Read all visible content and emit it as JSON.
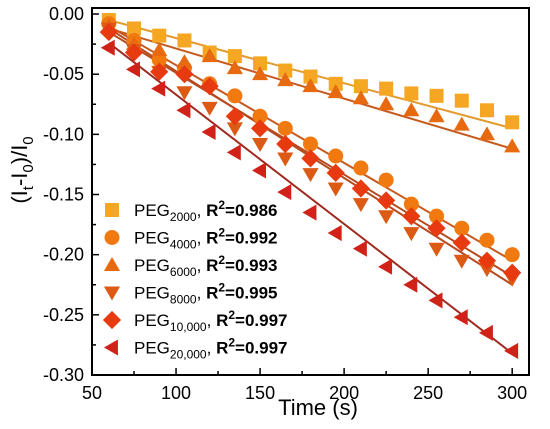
{
  "chart_data": {
    "type": "scatter",
    "xlabel": "Time (s)",
    "ylabel": {
      "base": "(I",
      "sub1": "t",
      "mid": "-I",
      "sub2": "0",
      "close": ")/I",
      "sub3": "0"
    },
    "xlim": [
      50,
      310
    ],
    "ylim": [
      -0.3,
      0.005
    ],
    "x_ticks": [
      "50",
      "100",
      "150",
      "200",
      "250",
      "300"
    ],
    "x_tick_values": [
      50,
      100,
      150,
      200,
      250,
      300
    ],
    "y_ticks": [
      "0.00",
      "-0.05",
      "-0.10",
      "-0.15",
      "-0.20",
      "-0.25",
      "-0.30"
    ],
    "y_tick_values": [
      0,
      -0.05,
      -0.1,
      -0.15,
      -0.2,
      -0.25,
      -0.3
    ],
    "grid": false,
    "legend_position": "bottom-left",
    "x": [
      60,
      75,
      90,
      105,
      120,
      135,
      150,
      165,
      180,
      195,
      210,
      225,
      240,
      255,
      270,
      285,
      300
    ],
    "series": [
      {
        "name": "PEG2000",
        "label_main": "PEG",
        "label_sub": "2000",
        "r2_prefix": ", ",
        "r2_label": "R",
        "r2_sup": "2",
        "r2_value": "=0.986",
        "marker": "square",
        "color": "#F5A623",
        "line_color": "#E29A2C",
        "values": [
          -0.005,
          -0.012,
          -0.018,
          -0.022,
          -0.032,
          -0.035,
          -0.041,
          -0.047,
          -0.052,
          -0.058,
          -0.06,
          -0.062,
          -0.066,
          -0.068,
          -0.072,
          -0.08,
          -0.09
        ],
        "fit": [
          -0.005,
          -0.095
        ]
      },
      {
        "name": "PEG4000",
        "label_main": "PEG",
        "label_sub": "4000",
        "r2_prefix": ", ",
        "r2_label": "R",
        "r2_sup": "2",
        "r2_value": "=0.992",
        "marker": "circle",
        "color": "#F07A10",
        "line_color": "#C65A1E",
        "values": [
          -0.008,
          -0.022,
          -0.038,
          -0.045,
          -0.058,
          -0.068,
          -0.085,
          -0.095,
          -0.108,
          -0.118,
          -0.128,
          -0.138,
          -0.158,
          -0.168,
          -0.178,
          -0.188,
          -0.2
        ],
        "fit": [
          -0.01,
          -0.205
        ]
      },
      {
        "name": "PEG6000",
        "label_main": "PEG",
        "label_sub": "6000",
        "r2_prefix": ", ",
        "r2_label": "R",
        "r2_sup": "2",
        "r2_value": "=0.993",
        "marker": "triangle-up",
        "color": "#E86A10",
        "line_color": "#C65A1E",
        "values": [
          -0.01,
          -0.025,
          -0.03,
          -0.04,
          -0.035,
          -0.045,
          -0.05,
          -0.055,
          -0.06,
          -0.065,
          -0.07,
          -0.075,
          -0.08,
          -0.085,
          -0.092,
          -0.1,
          -0.11
        ],
        "fit": [
          -0.012,
          -0.112
        ]
      },
      {
        "name": "PEG8000",
        "label_main": "PEG",
        "label_sub": "8000",
        "r2_prefix": ", ",
        "r2_label": "R",
        "r2_sup": "2",
        "r2_value": "=0.995",
        "marker": "triangle-down",
        "color": "#DC5A14",
        "line_color": "#B54A1E",
        "values": [
          -0.012,
          -0.03,
          -0.048,
          -0.065,
          -0.078,
          -0.095,
          -0.108,
          -0.12,
          -0.133,
          -0.145,
          -0.158,
          -0.168,
          -0.182,
          -0.195,
          -0.205,
          -0.212,
          -0.22
        ],
        "fit": [
          -0.012,
          -0.225
        ]
      },
      {
        "name": "PEG10,000",
        "label_main": "PEG",
        "label_sub": "10,000",
        "r2_prefix": ", ",
        "r2_label": "R",
        "r2_sup": "2",
        "r2_value": "=0.997",
        "marker": "diamond",
        "color": "#E83A10",
        "line_color": "#B54A1E",
        "values": [
          -0.015,
          -0.032,
          -0.048,
          -0.05,
          -0.06,
          -0.085,
          -0.095,
          -0.108,
          -0.12,
          -0.132,
          -0.145,
          -0.155,
          -0.168,
          -0.178,
          -0.19,
          -0.205,
          -0.215
        ],
        "fit": [
          -0.015,
          -0.218
        ]
      },
      {
        "name": "PEG20,000",
        "label_main": "PEG",
        "label_sub": "20,000",
        "r2_prefix": ", ",
        "r2_label": "R",
        "r2_sup": "2",
        "r2_value": "=0.997",
        "marker": "triangle-left",
        "color": "#D02218",
        "line_color": "#9E2A20",
        "values": [
          -0.028,
          -0.046,
          -0.062,
          -0.08,
          -0.098,
          -0.115,
          -0.13,
          -0.148,
          -0.165,
          -0.182,
          -0.195,
          -0.21,
          -0.225,
          -0.238,
          -0.252,
          -0.265,
          -0.28
        ],
        "fit": [
          -0.024,
          -0.282
        ]
      }
    ]
  }
}
